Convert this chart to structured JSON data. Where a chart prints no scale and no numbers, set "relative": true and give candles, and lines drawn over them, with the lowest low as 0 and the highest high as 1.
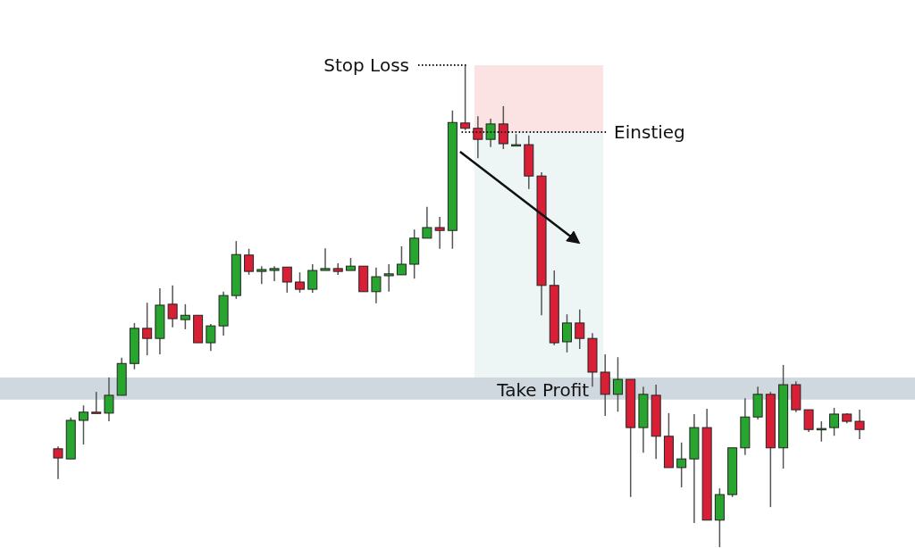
{
  "chart_data": {
    "type": "candlestick",
    "relative": true,
    "categories": [
      null,
      null,
      null,
      null,
      null,
      null,
      null,
      null,
      null,
      null,
      null,
      null,
      null,
      null,
      null,
      null,
      null,
      null,
      null,
      null,
      null,
      null,
      null,
      null,
      null,
      null,
      null,
      null,
      null,
      null,
      null,
      null,
      null,
      null,
      null,
      null,
      null,
      null,
      null,
      null,
      null,
      null,
      null,
      null,
      null,
      null,
      null,
      null,
      null,
      null,
      null,
      null,
      null,
      null,
      null,
      null,
      null,
      null,
      null,
      null,
      null,
      null,
      null,
      null
    ],
    "ohlc": [
      [
        0.204,
        0.209,
        0.141,
        0.185
      ],
      [
        0.183,
        0.269,
        0.183,
        0.263
      ],
      [
        0.263,
        0.294,
        0.213,
        0.28
      ],
      [
        0.28,
        0.322,
        0.278,
        0.278
      ],
      [
        0.278,
        0.352,
        0.261,
        0.315
      ],
      [
        0.315,
        0.393,
        0.315,
        0.381
      ],
      [
        0.381,
        0.465,
        0.369,
        0.454
      ],
      [
        0.454,
        0.507,
        0.398,
        0.433
      ],
      [
        0.433,
        0.537,
        0.4,
        0.502
      ],
      [
        0.504,
        0.543,
        0.456,
        0.474
      ],
      [
        0.472,
        0.504,
        0.452,
        0.481
      ],
      [
        0.481,
        0.481,
        0.424,
        0.424
      ],
      [
        0.424,
        0.463,
        0.407,
        0.459
      ],
      [
        0.459,
        0.53,
        0.439,
        0.522
      ],
      [
        0.522,
        0.635,
        0.515,
        0.607
      ],
      [
        0.606,
        0.619,
        0.565,
        0.572
      ],
      [
        0.572,
        0.583,
        0.546,
        0.576
      ],
      [
        0.574,
        0.583,
        0.552,
        0.578
      ],
      [
        0.581,
        0.581,
        0.528,
        0.55
      ],
      [
        0.55,
        0.57,
        0.528,
        0.535
      ],
      [
        0.535,
        0.587,
        0.528,
        0.574
      ],
      [
        0.574,
        0.62,
        0.574,
        0.578
      ],
      [
        0.578,
        0.589,
        0.565,
        0.572
      ],
      [
        0.574,
        0.6,
        0.574,
        0.583
      ],
      [
        0.583,
        0.583,
        0.53,
        0.53
      ],
      [
        0.53,
        0.58,
        0.506,
        0.561
      ],
      [
        0.563,
        0.587,
        0.53,
        0.567
      ],
      [
        0.565,
        0.624,
        0.565,
        0.587
      ],
      [
        0.587,
        0.659,
        0.557,
        0.641
      ],
      [
        0.641,
        0.706,
        0.641,
        0.663
      ],
      [
        0.663,
        0.685,
        0.619,
        0.657
      ],
      [
        0.657,
        0.906,
        0.619,
        0.881
      ],
      [
        0.88,
        1,
        0.865,
        0.869
      ],
      [
        0.869,
        0.894,
        0.807,
        0.846
      ],
      [
        0.846,
        0.889,
        0.83,
        0.878
      ],
      [
        0.878,
        0.915,
        0.826,
        0.837
      ],
      [
        0.833,
        0.857,
        0.833,
        0.835
      ],
      [
        0.835,
        0.854,
        0.743,
        0.77
      ],
      [
        0.77,
        0.778,
        0.481,
        0.543
      ],
      [
        0.543,
        0.574,
        0.419,
        0.424
      ],
      [
        0.426,
        0.483,
        0.404,
        0.465
      ],
      [
        0.465,
        0.493,
        0.411,
        0.433
      ],
      [
        0.433,
        0.444,
        0.333,
        0.363
      ],
      [
        0.363,
        0.4,
        0.272,
        0.317
      ],
      [
        0.317,
        0.394,
        0.281,
        0.348
      ],
      [
        0.348,
        0.348,
        0.104,
        0.248
      ],
      [
        0.248,
        0.333,
        0.196,
        0.317
      ],
      [
        0.315,
        0.337,
        0.183,
        0.23
      ],
      [
        0.23,
        0.278,
        0.165,
        0.165
      ],
      [
        0.165,
        0.217,
        0.124,
        0.183
      ],
      [
        0.183,
        0.276,
        0.05,
        0.248
      ],
      [
        0.248,
        0.287,
        0.056,
        0.056
      ],
      [
        0.056,
        0.122,
        0,
        0.109
      ],
      [
        0.109,
        0.206,
        0.104,
        0.206
      ],
      [
        0.206,
        0.309,
        0.191,
        0.27
      ],
      [
        0.27,
        0.333,
        0.265,
        0.317
      ],
      [
        0.317,
        0.322,
        0.083,
        0.206
      ],
      [
        0.206,
        0.378,
        0.163,
        0.337
      ],
      [
        0.337,
        0.344,
        0.28,
        0.285
      ],
      [
        0.285,
        0.285,
        0.239,
        0.244
      ],
      [
        0.246,
        0.261,
        0.219,
        0.246
      ],
      [
        0.248,
        0.289,
        0.231,
        0.276
      ],
      [
        0.276,
        0.278,
        0.257,
        0.261
      ],
      [
        0.261,
        0.285,
        0.224,
        0.244
      ]
    ],
    "ref_lines": [
      {
        "axis": "y",
        "value": 1,
        "label": "Stop Loss",
        "line_style": "dotted"
      },
      {
        "axis": "y",
        "value": 0.861,
        "label": "Einstieg",
        "line_style": "dotted"
      }
    ],
    "bands": [
      {
        "axis": "y",
        "from": 0.861,
        "to": 1,
        "color": "#fbe3e4"
      },
      {
        "axis": "y",
        "from": 0.352,
        "to": 0.861,
        "color": "#eef6f5"
      },
      {
        "axis": "y",
        "from": 0.306,
        "to": 0.352,
        "label": "Take Profit",
        "color": "#ccd5dd"
      }
    ]
  }
}
